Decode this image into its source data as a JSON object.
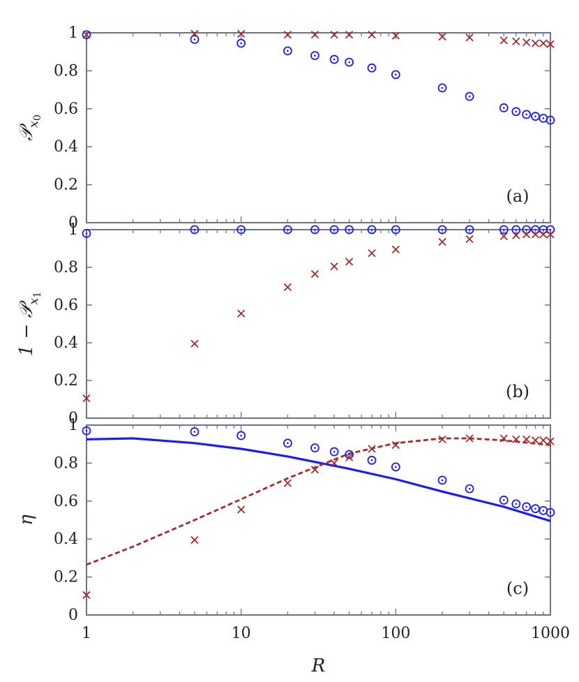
{
  "chart_data": {
    "type": "scatter",
    "x_scale": "log",
    "xlim": [
      1,
      1000
    ],
    "x_ticks": [
      1,
      10,
      100,
      1000
    ],
    "x_tick_labels": [
      "1",
      "10",
      "100",
      "1000"
    ],
    "xlabel": "R",
    "x": [
      1,
      5,
      10,
      20,
      30,
      40,
      50,
      70,
      100,
      200,
      300,
      500,
      600,
      700,
      800,
      900,
      1000
    ],
    "colors": {
      "circle": "#1a1aff",
      "cross": "#a52a2a",
      "axis": "#6b7385"
    },
    "panels": [
      {
        "tag": "(a)",
        "ylabel": "𝒫",
        "ylabel_sub": "x",
        "ylabel_subsub": "0",
        "ylim": [
          0,
          1
        ],
        "y_ticks": [
          0,
          0.2,
          0.4,
          0.6,
          0.8,
          1
        ],
        "y_tick_labels": [
          "0",
          "0.2",
          "0.4",
          "0.6",
          "0.8",
          "1"
        ],
        "series": [
          {
            "name": "circles",
            "marker": "circle",
            "values": [
              0.99,
              0.965,
              0.945,
              0.905,
              0.88,
              0.86,
              0.845,
              0.815,
              0.78,
              0.71,
              0.665,
              0.605,
              0.585,
              0.57,
              0.56,
              0.55,
              0.54
            ]
          },
          {
            "name": "crosses",
            "marker": "cross",
            "values": [
              0.99,
              0.995,
              0.995,
              0.99,
              0.99,
              0.99,
              0.99,
              0.99,
              0.985,
              0.98,
              0.975,
              0.96,
              0.955,
              0.95,
              0.945,
              0.945,
              0.94
            ]
          }
        ]
      },
      {
        "tag": "(b)",
        "ylabel": "1 − 𝒫",
        "ylabel_sub": "x",
        "ylabel_subsub": "1",
        "ylim": [
          0,
          1
        ],
        "y_ticks": [
          0,
          0.2,
          0.4,
          0.6,
          0.8,
          1
        ],
        "y_tick_labels": [
          "0",
          "0.2",
          "0.4",
          "0.6",
          "0.8",
          "1"
        ],
        "series": [
          {
            "name": "circles",
            "marker": "circle",
            "values": [
              0.98,
              1,
              1,
              1,
              1,
              1,
              1,
              1,
              1,
              1,
              1,
              1,
              1,
              1,
              1,
              1,
              1
            ]
          },
          {
            "name": "crosses",
            "marker": "cross",
            "values": [
              0.105,
              0.395,
              0.555,
              0.695,
              0.765,
              0.805,
              0.83,
              0.875,
              0.895,
              0.935,
              0.95,
              0.965,
              0.97,
              0.975,
              0.975,
              0.975,
              0.975
            ]
          }
        ]
      },
      {
        "tag": "(c)",
        "ylabel": "η",
        "ylim": [
          0,
          1
        ],
        "y_ticks": [
          0,
          0.2,
          0.4,
          0.6,
          0.8,
          1
        ],
        "y_tick_labels": [
          "0",
          "0.2",
          "0.4",
          "0.6",
          "0.8",
          "1"
        ],
        "series": [
          {
            "name": "circles",
            "marker": "circle",
            "values": [
              0.97,
              0.965,
              0.945,
              0.905,
              0.88,
              0.86,
              0.845,
              0.815,
              0.78,
              0.71,
              0.665,
              0.605,
              0.585,
              0.57,
              0.56,
              0.55,
              0.54
            ]
          },
          {
            "name": "crosses",
            "marker": "cross",
            "values": [
              0.105,
              0.395,
              0.555,
              0.695,
              0.765,
              0.8,
              0.83,
              0.875,
              0.895,
              0.925,
              0.93,
              0.93,
              0.925,
              0.925,
              0.92,
              0.92,
              0.915
            ]
          }
        ],
        "lines": [
          {
            "name": "solid-blue",
            "style": "solid",
            "x": [
              1,
              2,
              5,
              10,
              20,
              50,
              100,
              200,
              500,
              1000
            ],
            "values": [
              0.925,
              0.93,
              0.905,
              0.875,
              0.835,
              0.77,
              0.715,
              0.65,
              0.57,
              0.495
            ]
          },
          {
            "name": "dashed-red",
            "style": "dashed",
            "x": [
              1,
              2,
              5,
              10,
              20,
              50,
              100,
              200,
              300,
              500,
              1000
            ],
            "values": [
              0.265,
              0.36,
              0.5,
              0.61,
              0.72,
              0.85,
              0.905,
              0.93,
              0.93,
              0.92,
              0.895
            ]
          }
        ]
      }
    ]
  }
}
